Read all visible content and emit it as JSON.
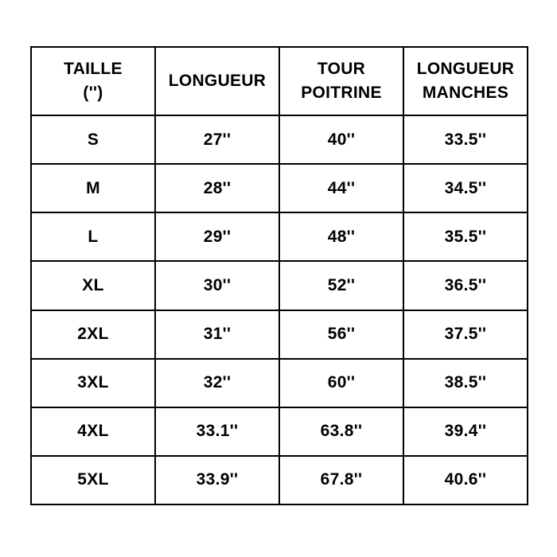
{
  "chart_data": {
    "type": "table",
    "title": "",
    "columns": [
      {
        "label": "TAILLE ('')",
        "display": "TAILLE\n('')"
      },
      {
        "label": "LONGUEUR",
        "display": "LONGUEUR"
      },
      {
        "label": "TOUR POITRINE",
        "display": "TOUR\nPOITRINE"
      },
      {
        "label": "LONGUEUR MANCHES",
        "display": "LONGUEUR\nMANCHES"
      }
    ],
    "rows": [
      [
        "S",
        "27''",
        "40''",
        "33.5''"
      ],
      [
        "M",
        "28''",
        "44''",
        "34.5''"
      ],
      [
        "L",
        "29''",
        "48''",
        "35.5''"
      ],
      [
        "XL",
        "30''",
        "52''",
        "36.5''"
      ],
      [
        "2XL",
        "31''",
        "56''",
        "37.5''"
      ],
      [
        "3XL",
        "32''",
        "60''",
        "38.5''"
      ],
      [
        "4XL",
        "33.1''",
        "63.8''",
        "39.4''"
      ],
      [
        "5XL",
        "33.9''",
        "67.8''",
        "40.6''"
      ]
    ]
  },
  "colors": {
    "background": "#ffffff",
    "border": "#000000",
    "text": "#000000"
  }
}
